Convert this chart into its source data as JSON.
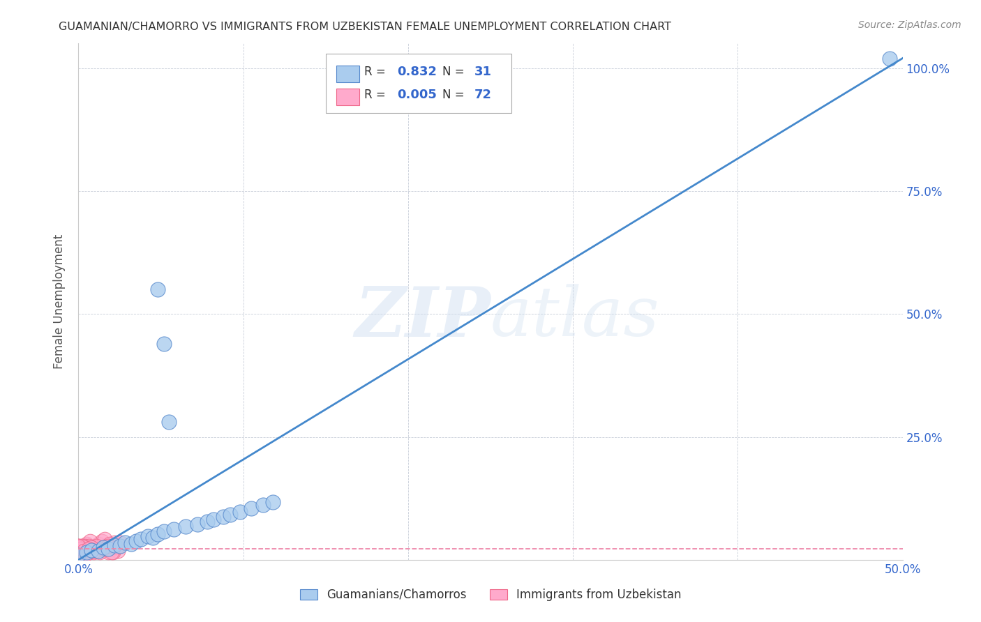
{
  "title": "GUAMANIAN/CHAMORRO VS IMMIGRANTS FROM UZBEKISTAN FEMALE UNEMPLOYMENT CORRELATION CHART",
  "source": "Source: ZipAtlas.com",
  "ylabel_left": "Female Unemployment",
  "xlim": [
    0.0,
    0.5
  ],
  "ylim": [
    0.0,
    1.05
  ],
  "xticks": [
    0.0,
    0.1,
    0.2,
    0.3,
    0.4,
    0.5
  ],
  "yticks": [
    0.0,
    0.25,
    0.5,
    0.75,
    1.0
  ],
  "right_ytick_labels": [
    "",
    "25.0%",
    "50.0%",
    "75.0%",
    "100.0%"
  ],
  "xtick_labels": [
    "0.0%",
    "",
    "",
    "",
    "",
    "50.0%"
  ],
  "background_color": "#ffffff",
  "grid_color": "#b0b8c8",
  "watermark": "ZIPatlas",
  "series1_name": "Guamanians/Chamorros",
  "series1_color": "#aaccee",
  "series1_edge_color": "#5588cc",
  "series1_R": 0.832,
  "series1_N": 31,
  "series1_line_color": "#4488cc",
  "series2_name": "Immigrants from Uzbekistan",
  "series2_color": "#ffaacc",
  "series2_edge_color": "#ee6688",
  "series2_R": 0.005,
  "series2_N": 72,
  "series2_line_color": "#ee88aa",
  "title_color": "#333333",
  "axis_tick_color": "#3366cc",
  "legend_R_color": "#3366cc",
  "guam_points_x": [
    0.0,
    0.005,
    0.008,
    0.012,
    0.015,
    0.018,
    0.022,
    0.025,
    0.028,
    0.032,
    0.035,
    0.038,
    0.042,
    0.045,
    0.048,
    0.052,
    0.055,
    0.058,
    0.065,
    0.072,
    0.078,
    0.082,
    0.088,
    0.092,
    0.098,
    0.105,
    0.112,
    0.118,
    0.052,
    0.048,
    0.492
  ],
  "guam_points_y": [
    0.01,
    0.015,
    0.02,
    0.018,
    0.025,
    0.022,
    0.03,
    0.028,
    0.035,
    0.032,
    0.038,
    0.042,
    0.048,
    0.045,
    0.052,
    0.058,
    0.28,
    0.062,
    0.068,
    0.072,
    0.078,
    0.082,
    0.088,
    0.092,
    0.098,
    0.105,
    0.112,
    0.118,
    0.44,
    0.55,
    1.02
  ],
  "uzbek_points_x": [
    0.0,
    0.002,
    0.004,
    0.006,
    0.008,
    0.01,
    0.012,
    0.014,
    0.016,
    0.018,
    0.02,
    0.022,
    0.024,
    0.001,
    0.003,
    0.005,
    0.007,
    0.009,
    0.011,
    0.013,
    0.015,
    0.017,
    0.019,
    0.021,
    0.023,
    0.0,
    0.002,
    0.004,
    0.006,
    0.008,
    0.01,
    0.012,
    0.001,
    0.003,
    0.005,
    0.007,
    0.009,
    0.011,
    0.013,
    0.0,
    0.002,
    0.004,
    0.006,
    0.001,
    0.003,
    0.005,
    0.007,
    0.0,
    0.002,
    0.004,
    0.001,
    0.003,
    0.0,
    0.002,
    0.001,
    0.003,
    0.0,
    0.002,
    0.001,
    0.0,
    0.002,
    0.001,
    0.0,
    0.025,
    0.005,
    0.01,
    0.015,
    0.02,
    0.008,
    0.003,
    0.006,
    0.018
  ],
  "uzbek_points_y": [
    0.015,
    0.02,
    0.025,
    0.018,
    0.022,
    0.028,
    0.032,
    0.038,
    0.042,
    0.015,
    0.025,
    0.035,
    0.018,
    0.022,
    0.028,
    0.032,
    0.038,
    0.015,
    0.025,
    0.018,
    0.022,
    0.028,
    0.032,
    0.015,
    0.025,
    0.018,
    0.022,
    0.028,
    0.015,
    0.025,
    0.018,
    0.022,
    0.028,
    0.015,
    0.025,
    0.018,
    0.022,
    0.028,
    0.015,
    0.025,
    0.018,
    0.022,
    0.028,
    0.015,
    0.025,
    0.018,
    0.022,
    0.028,
    0.015,
    0.025,
    0.018,
    0.022,
    0.028,
    0.015,
    0.025,
    0.018,
    0.022,
    0.028,
    0.015,
    0.025,
    0.018,
    0.022,
    0.028,
    0.035,
    0.012,
    0.018,
    0.022,
    0.015,
    0.025,
    0.018,
    0.022,
    0.028
  ],
  "uzbek_line_y": 0.022
}
